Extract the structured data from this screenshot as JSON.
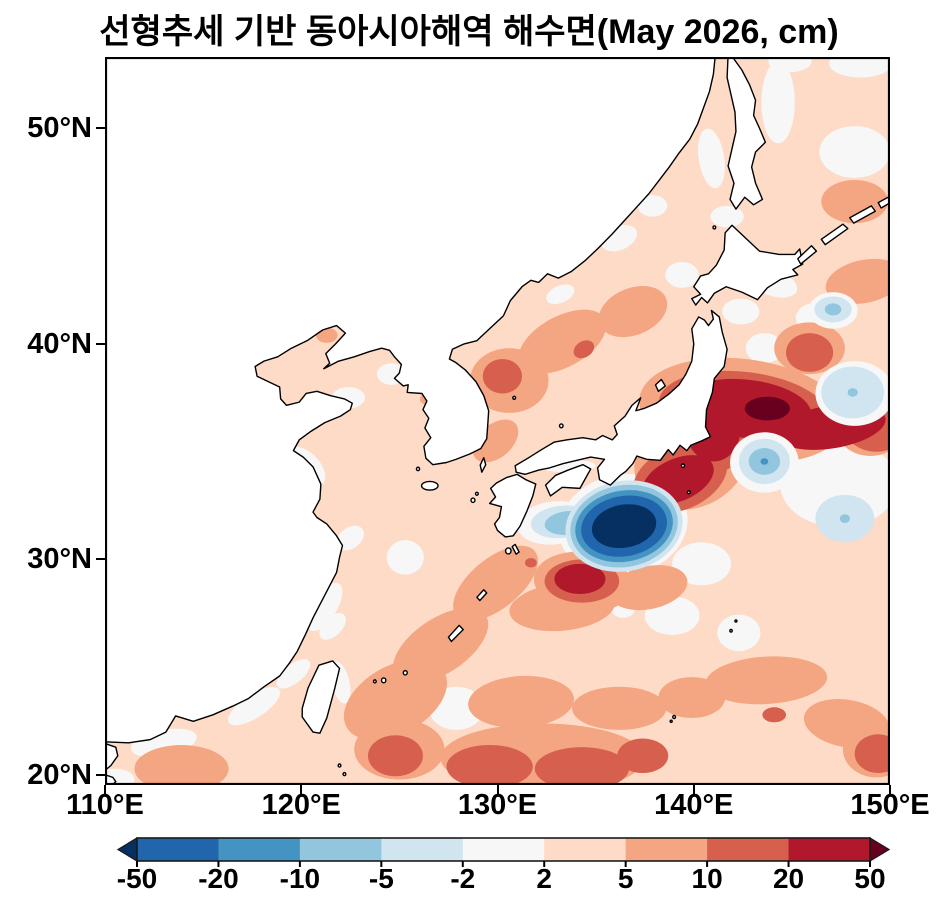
{
  "figure": {
    "title": "선형추세 기반 동아시아해역 해수면(May 2026, cm)"
  },
  "chart_data": {
    "type": "heatmap",
    "variant": "filled-contour-map",
    "title": "선형추세 기반 동아시아해역 해수면(May 2026, cm)",
    "value_units": "cm",
    "region": "East Asian seas",
    "x_axis": {
      "range": [
        110,
        150
      ],
      "ticks": [
        110,
        120,
        130,
        140,
        150
      ],
      "tick_labels": [
        "110°E",
        "120°E",
        "130°E",
        "140°E",
        "150°E"
      ]
    },
    "y_axis": {
      "range": [
        19.5,
        53.3
      ],
      "ticks": [
        20,
        30,
        40,
        50
      ],
      "tick_labels": [
        "20°N",
        "30°N",
        "40°N",
        "50°N"
      ]
    },
    "grid": false,
    "colorbar": {
      "orientation": "horizontal",
      "boundaries": [
        -50,
        -20,
        -10,
        -5,
        -2,
        2,
        5,
        10,
        20,
        50
      ],
      "boundary_labels": [
        "-50",
        "-20",
        "-10",
        "-5",
        "-2",
        "2",
        "5",
        "10",
        "20",
        "50"
      ],
      "segment_colors": [
        "#2166ac",
        "#4393c3",
        "#92c5de",
        "#d1e5f0",
        "#f7f7f7",
        "#fddbc7",
        "#f4a582",
        "#d6604d",
        "#b2182b"
      ],
      "under_color": "#053061",
      "over_color": "#67001f",
      "outline_color": "#1a1a1a"
    },
    "map_colors": {
      "land": "#ffffff",
      "coastline": "#000000",
      "frame": "#000000",
      "sea_base": "#fddbc7"
    },
    "features": [
      {
        "name": "deep-low-eddy-south-of-japan",
        "lon": 136.4,
        "lat": 31.6,
        "value": "< -50 cm core, rings to -2 cm"
      },
      {
        "name": "kuroshio-extension-high-band",
        "lon": 143.7,
        "lat": 37.0,
        "value": "> 50 cm core, 20–50 cm band 139–150°E"
      },
      {
        "name": "high-eddy-southwest-of-eddy",
        "lon": 134.3,
        "lat": 29.0,
        "value": "20–50 cm"
      },
      {
        "name": "tokai-coast-high",
        "lon": 139.2,
        "lat": 33.7,
        "value": "20–50 cm"
      },
      {
        "name": "east-sea-high",
        "lon": 130.3,
        "lat": 38.5,
        "value": "10–20 cm"
      },
      {
        "name": "low-eddy-east-of-izu",
        "lon": 143.6,
        "lat": 34.5,
        "value": "-10 – -5 cm"
      },
      {
        "name": "low-patch-148E-37.7N",
        "lon": 148.1,
        "lat": 37.7,
        "value": "-5 – -2 cm"
      },
      {
        "name": "low-patch-147.7E-31.9N",
        "lon": 147.7,
        "lat": 31.9,
        "value": "-5 – -2 cm"
      },
      {
        "name": "low-spot-147E-41.6N",
        "lon": 147.1,
        "lat": 41.6,
        "value": "-10 – -5 cm"
      },
      {
        "name": "south-boundary-high-band",
        "lon": 133,
        "lat": 20.7,
        "value": "10–20 cm blobs along 20–21.5°N"
      },
      {
        "name": "background",
        "value": "mostly 2–5 cm, patches of 5–10 cm and -2–2 cm"
      }
    ]
  }
}
